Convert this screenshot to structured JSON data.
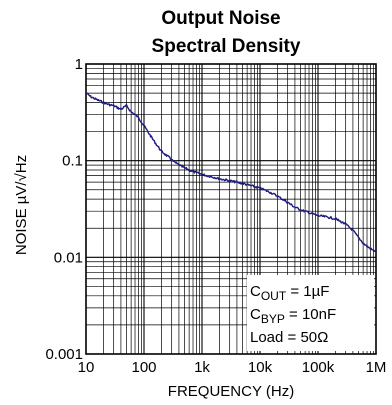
{
  "chart_data": {
    "type": "line",
    "title": [
      "Output Noise",
      "Spectral Density"
    ],
    "xlabel": "FREQUENCY (Hz)",
    "ylabel": "NOISE µV/√Hz",
    "x_scale": "log",
    "y_scale": "log",
    "xlim": [
      10,
      1000000
    ],
    "ylim": [
      0.001,
      1
    ],
    "grid": true,
    "x_ticks": [
      {
        "value": 10,
        "label": "10"
      },
      {
        "value": 100,
        "label": "100"
      },
      {
        "value": 1000,
        "label": "1k"
      },
      {
        "value": 10000,
        "label": "10k"
      },
      {
        "value": 100000,
        "label": "100k"
      },
      {
        "value": 1000000,
        "label": "1M"
      }
    ],
    "y_ticks": [
      {
        "value": 1,
        "label": "1"
      },
      {
        "value": 0.1,
        "label": "0.1"
      },
      {
        "value": 0.01,
        "label": "0.01"
      },
      {
        "value": 0.001,
        "label": "0.001"
      }
    ],
    "conditions": [
      {
        "symbol": "C",
        "sub": "OUT",
        "rest": " = 1µF"
      },
      {
        "symbol": "C",
        "sub": "BYP",
        "rest": " = 10nF"
      },
      {
        "symbol": "",
        "sub": "",
        "rest": "Load = 50Ω"
      }
    ],
    "conditions_placement": "bottom-right",
    "line_color": "#1a1a80",
    "series": [
      {
        "x": [
          10,
          12,
          15,
          20,
          25,
          30,
          40,
          50,
          60,
          70,
          80,
          100,
          130,
          160,
          200,
          260,
          330,
          430,
          550,
          700,
          1000,
          1500,
          2000,
          3000,
          5000,
          7000,
          10000,
          15000,
          20000,
          30000,
          40000,
          50000,
          70000,
          100000,
          150000,
          200000,
          300000,
          400000,
          500000,
          600000,
          700000,
          850000,
          1000000
        ],
        "y": [
          0.5,
          0.46,
          0.43,
          0.4,
          0.38,
          0.37,
          0.34,
          0.37,
          0.32,
          0.3,
          0.28,
          0.23,
          0.18,
          0.15,
          0.125,
          0.11,
          0.097,
          0.088,
          0.082,
          0.077,
          0.072,
          0.068,
          0.065,
          0.062,
          0.058,
          0.055,
          0.052,
          0.047,
          0.043,
          0.037,
          0.033,
          0.031,
          0.029,
          0.027,
          0.026,
          0.025,
          0.022,
          0.019,
          0.016,
          0.014,
          0.013,
          0.012,
          0.0115
        ]
      }
    ]
  }
}
